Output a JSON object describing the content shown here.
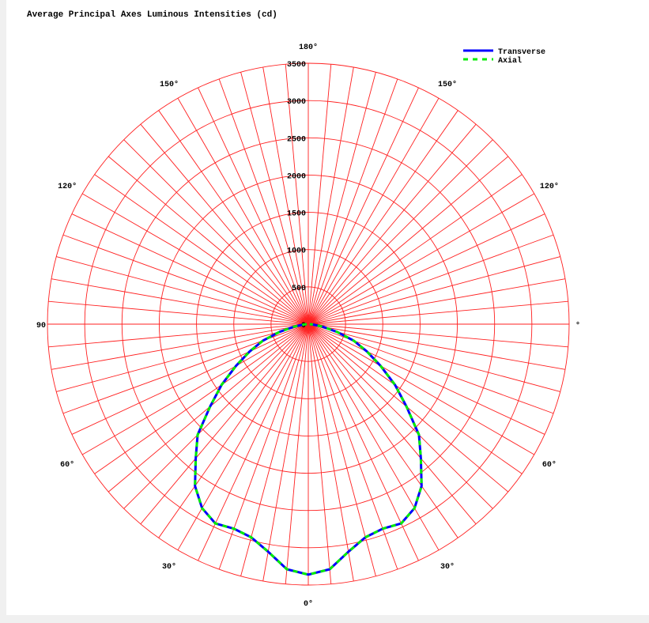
{
  "chart_data": {
    "type": "polar",
    "title": "Average Principal Axes Luminous Intensities (cd)",
    "radial_axis": {
      "min": 0,
      "max": 3500,
      "ticks": [
        0,
        500,
        1000,
        1500,
        2000,
        2500,
        3000,
        3500
      ],
      "grid": true
    },
    "angle_labels": [
      {
        "text": "180°",
        "deg": 180
      },
      {
        "text": "150°",
        "deg": 150
      },
      {
        "text": "150°",
        "deg": -150
      },
      {
        "text": "120°",
        "deg": 120
      },
      {
        "text": "120°",
        "deg": -120
      },
      {
        "text": "90",
        "deg": -90
      },
      {
        "text": "°",
        "deg": 90
      },
      {
        "text": "60°",
        "deg": 60
      },
      {
        "text": "60°",
        "deg": -60
      },
      {
        "text": "30°",
        "deg": 30
      },
      {
        "text": "30°",
        "deg": -30
      },
      {
        "text": "0°",
        "deg": 0
      }
    ],
    "legend_position": "top-right",
    "angles_deg": [
      0,
      5,
      10,
      15,
      20,
      25,
      30,
      35,
      40,
      45,
      50,
      55,
      60,
      65,
      70,
      75,
      80,
      85,
      90
    ],
    "series": [
      {
        "name": "Transverse",
        "color": "#0000ff",
        "style": "solid",
        "values": [
          3360,
          3300,
          3100,
          2960,
          2920,
          2950,
          2850,
          2650,
          2350,
          2100,
          1720,
          1420,
          1120,
          870,
          650,
          400,
          190,
          70,
          20
        ]
      },
      {
        "name": "Axial",
        "color": "#00ee00",
        "style": "dashed",
        "values": [
          3360,
          3300,
          3100,
          2960,
          2920,
          2950,
          2850,
          2650,
          2350,
          2100,
          1720,
          1420,
          1120,
          870,
          650,
          400,
          190,
          70,
          20
        ]
      }
    ]
  }
}
